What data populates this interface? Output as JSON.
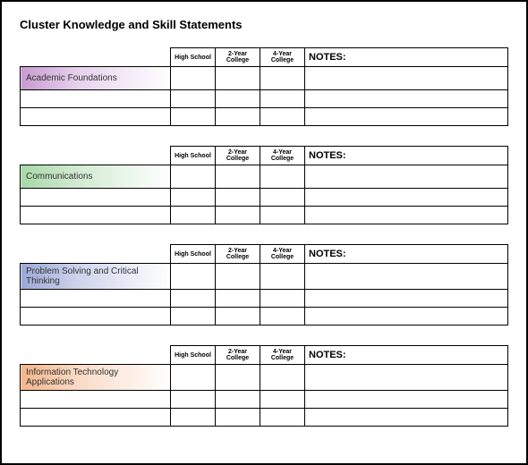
{
  "title": "Cluster Knowledge and Skill Statements",
  "columns": {
    "c1": "High School",
    "c2": "2-Year College",
    "c3": "4-Year College",
    "notes": "NOTES:"
  },
  "sections": [
    {
      "label": "Academic Foundations",
      "colorClass": "purple"
    },
    {
      "label": "Communications",
      "colorClass": "green"
    },
    {
      "label": "Problem Solving and Critical Thinking",
      "colorClass": "blue"
    },
    {
      "label": "Information Technology Applications",
      "colorClass": "orange"
    }
  ]
}
